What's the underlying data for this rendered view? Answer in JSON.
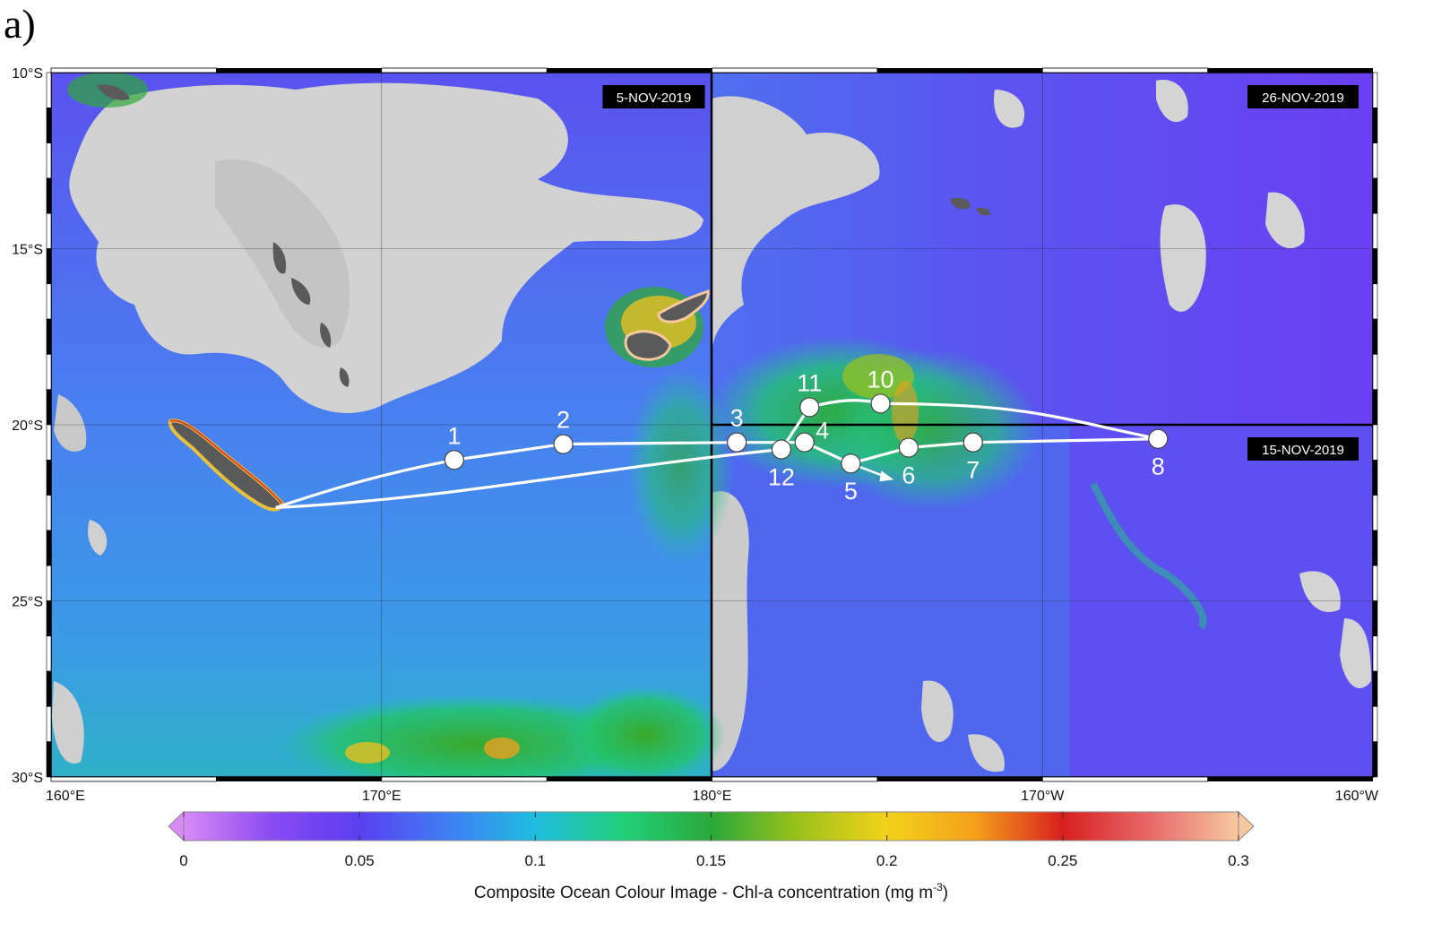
{
  "panel_label": "a)",
  "map": {
    "lat_labels": [
      {
        "lat": -10,
        "label": "10°S"
      },
      {
        "lat": -15,
        "label": "15°S"
      },
      {
        "lat": -20,
        "label": "20°S"
      },
      {
        "lat": -25,
        "label": "25°S"
      },
      {
        "lat": -30,
        "label": "30°S"
      }
    ],
    "lon_labels": [
      {
        "lon": 160,
        "label": "160°E"
      },
      {
        "lon": 170,
        "label": "170°E"
      },
      {
        "lon": 180,
        "label": "180°E"
      },
      {
        "lon": 190,
        "label": "170°W"
      },
      {
        "lon": 200,
        "label": "160°W"
      }
    ],
    "lon_range": [
      160,
      200
    ],
    "lat_range": [
      -30,
      -10
    ],
    "composite_dates": [
      {
        "label": "5-NOV-2019",
        "region": "west of 180°",
        "corner": "top-right"
      },
      {
        "label": "26-NOV-2019",
        "region": "east of 180°, north of 20°S",
        "corner": "top-right"
      },
      {
        "label": "15-NOV-2019",
        "region": "east of 180°, south of 20°S",
        "corner": "top-right"
      }
    ],
    "stations": [
      {
        "label": "1",
        "lon": 172.2,
        "lat": -21.0,
        "label_pos": "above"
      },
      {
        "label": "2",
        "lon": 175.5,
        "lat": -20.55,
        "label_pos": "above"
      },
      {
        "label": "3",
        "lon": 180.75,
        "lat": -20.5,
        "label_pos": "above"
      },
      {
        "label": "4",
        "lon": 182.8,
        "lat": -20.5,
        "label_pos": "right"
      },
      {
        "label": "5",
        "lon": 184.2,
        "lat": -21.1,
        "label_pos": "below"
      },
      {
        "label": "6",
        "lon": 185.95,
        "lat": -20.65,
        "label_pos": "below"
      },
      {
        "label": "7",
        "lon": 187.9,
        "lat": -20.5,
        "label_pos": "below"
      },
      {
        "label": "8",
        "lon": 193.5,
        "lat": -20.4,
        "label_pos": "below"
      },
      {
        "label": "10",
        "lon": 185.1,
        "lat": -19.4,
        "label_pos": "above"
      },
      {
        "label": "11",
        "lon": 182.95,
        "lat": -19.5,
        "label_pos": "above"
      },
      {
        "label": "12",
        "lon": 182.1,
        "lat": -20.7,
        "label_pos": "below"
      }
    ],
    "track_start": {
      "lon": 166.8,
      "lat": -22.35
    },
    "colors": {
      "cloud": "#d4d4d4",
      "land": "#5c5c5c",
      "ocean_low": "#6a3ff2",
      "ocean_mid": "#3a8ff0",
      "track": "#ffffff"
    }
  },
  "colorbar": {
    "title": "Composite Ocean Colour Image - Chl-a concentration (mg m",
    "title_superscript": "-3",
    "title_close": ")",
    "range": [
      0,
      0.3
    ],
    "ticks": [
      {
        "value": 0,
        "label": "0"
      },
      {
        "value": 0.05,
        "label": "0.05"
      },
      {
        "value": 0.1,
        "label": "0.1"
      },
      {
        "value": 0.15,
        "label": "0.15"
      },
      {
        "value": 0.2,
        "label": "0.2"
      },
      {
        "value": 0.25,
        "label": "0.25"
      },
      {
        "value": 0.3,
        "label": "0.3"
      }
    ],
    "stops": [
      {
        "value": 0.0,
        "color": "#d88af5"
      },
      {
        "value": 0.025,
        "color": "#8a4af2"
      },
      {
        "value": 0.05,
        "color": "#5a3ff0"
      },
      {
        "value": 0.075,
        "color": "#3f7ef5"
      },
      {
        "value": 0.1,
        "color": "#1fbde0"
      },
      {
        "value": 0.125,
        "color": "#20d07a"
      },
      {
        "value": 0.15,
        "color": "#2aa83a"
      },
      {
        "value": 0.175,
        "color": "#9cc21a"
      },
      {
        "value": 0.2,
        "color": "#f2d21a"
      },
      {
        "value": 0.225,
        "color": "#f5a01a"
      },
      {
        "value": 0.25,
        "color": "#d81f1f"
      },
      {
        "value": 0.275,
        "color": "#e86a6a"
      },
      {
        "value": 0.3,
        "color": "#f7c8a0"
      }
    ]
  }
}
